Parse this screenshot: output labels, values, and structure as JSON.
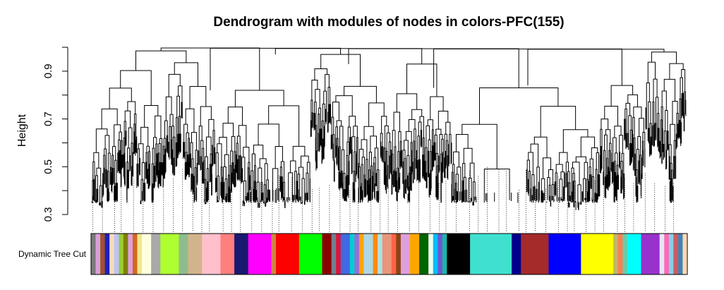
{
  "title": "Dendrogram with modules of nodes in colors-PFC(155)",
  "y_axis": {
    "label": "Height",
    "range": [
      0.3,
      1.0
    ],
    "ticks": [
      0.3,
      0.5,
      0.7,
      0.9
    ],
    "tick_labels": [
      "0.3",
      "0.5",
      "0.7",
      "0.9"
    ],
    "minor_ticks": [
      0.4,
      0.6,
      0.8,
      1.0
    ]
  },
  "color_row": {
    "label": "Dynamic Tree Cut",
    "segments": [
      {
        "color": "#7b7b7b",
        "w": 1
      },
      {
        "color": "#d8a0d8",
        "w": 1
      },
      {
        "color": "#a0522d",
        "w": 1
      },
      {
        "color": "#2020c0",
        "w": 1
      },
      {
        "color": "#f5deb3",
        "w": 1
      },
      {
        "color": "#c0c0ff",
        "w": 1
      },
      {
        "color": "#9acd32",
        "w": 1
      },
      {
        "color": "#808000",
        "w": 1
      },
      {
        "color": "#dda0dd",
        "w": 1
      },
      {
        "color": "#d2691e",
        "w": 1
      },
      {
        "color": "#f0e68c",
        "w": 1
      },
      {
        "color": "#ffffe0",
        "w": 2
      },
      {
        "color": "#a9a9a9",
        "w": 2
      },
      {
        "color": "#adff2f",
        "w": 4
      },
      {
        "color": "#8fbc8f",
        "w": 2
      },
      {
        "color": "#d2b48c",
        "w": 3
      },
      {
        "color": "#ffc0cb",
        "w": 4
      },
      {
        "color": "#ff7f7f",
        "w": 3
      },
      {
        "color": "#191970",
        "w": 3
      },
      {
        "color": "#ff00ff",
        "w": 5
      },
      {
        "color": "#cd853f",
        "w": 1
      },
      {
        "color": "#ff0000",
        "w": 5
      },
      {
        "color": "#00ff00",
        "w": 5
      },
      {
        "color": "#8b0000",
        "w": 2
      },
      {
        "color": "#708090",
        "w": 1
      },
      {
        "color": "#dc143c",
        "w": 1
      },
      {
        "color": "#4169e1",
        "w": 2
      },
      {
        "color": "#00ced1",
        "w": 1
      },
      {
        "color": "#9370db",
        "w": 1
      },
      {
        "color": "#ffa500",
        "w": 1
      },
      {
        "color": "#add8e6",
        "w": 2
      },
      {
        "color": "#ff8c00",
        "w": 1
      },
      {
        "color": "#b0e0e6",
        "w": 1
      },
      {
        "color": "#e9967a",
        "w": 2
      },
      {
        "color": "#ff6347",
        "w": 1
      },
      {
        "color": "#8b4513",
        "w": 1
      },
      {
        "color": "#dda0dd",
        "w": 2
      },
      {
        "color": "#ffa500",
        "w": 2
      },
      {
        "color": "#006400",
        "w": 2
      },
      {
        "color": "#f0fff0",
        "w": 1
      },
      {
        "color": "#00bfff",
        "w": 1
      },
      {
        "color": "#6a5acd",
        "w": 1
      },
      {
        "color": "#20b2aa",
        "w": 1
      },
      {
        "color": "#000000",
        "w": 5
      },
      {
        "color": "#40e0d0",
        "w": 9
      },
      {
        "color": "#00008b",
        "w": 2
      },
      {
        "color": "#a52a2a",
        "w": 6
      },
      {
        "color": "#0000ff",
        "w": 7
      },
      {
        "color": "#ffff00",
        "w": 7
      },
      {
        "color": "#bdb76b",
        "w": 1
      },
      {
        "color": "#ff7f50",
        "w": 1
      },
      {
        "color": "#66cdaa",
        "w": 1
      },
      {
        "color": "#00ffff",
        "w": 3
      },
      {
        "color": "#9932cc",
        "w": 4
      },
      {
        "color": "#e6e6fa",
        "w": 1
      },
      {
        "color": "#ff69b4",
        "w": 1
      },
      {
        "color": "#87ceeb",
        "w": 1
      },
      {
        "color": "#cd5c5c",
        "w": 1
      },
      {
        "color": "#4682b4",
        "w": 1
      },
      {
        "color": "#ffdab9",
        "w": 1
      }
    ]
  }
}
